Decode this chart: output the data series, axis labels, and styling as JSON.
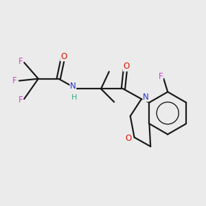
{
  "background_color": "#ebebeb",
  "bond_color": "#1a1a1a",
  "figsize": [
    3.0,
    3.0
  ],
  "dpi": 100,
  "colors": {
    "F": "#cc44cc",
    "O": "#dd1100",
    "N": "#2233cc",
    "H": "#33aa88",
    "C": "#1a1a1a"
  }
}
